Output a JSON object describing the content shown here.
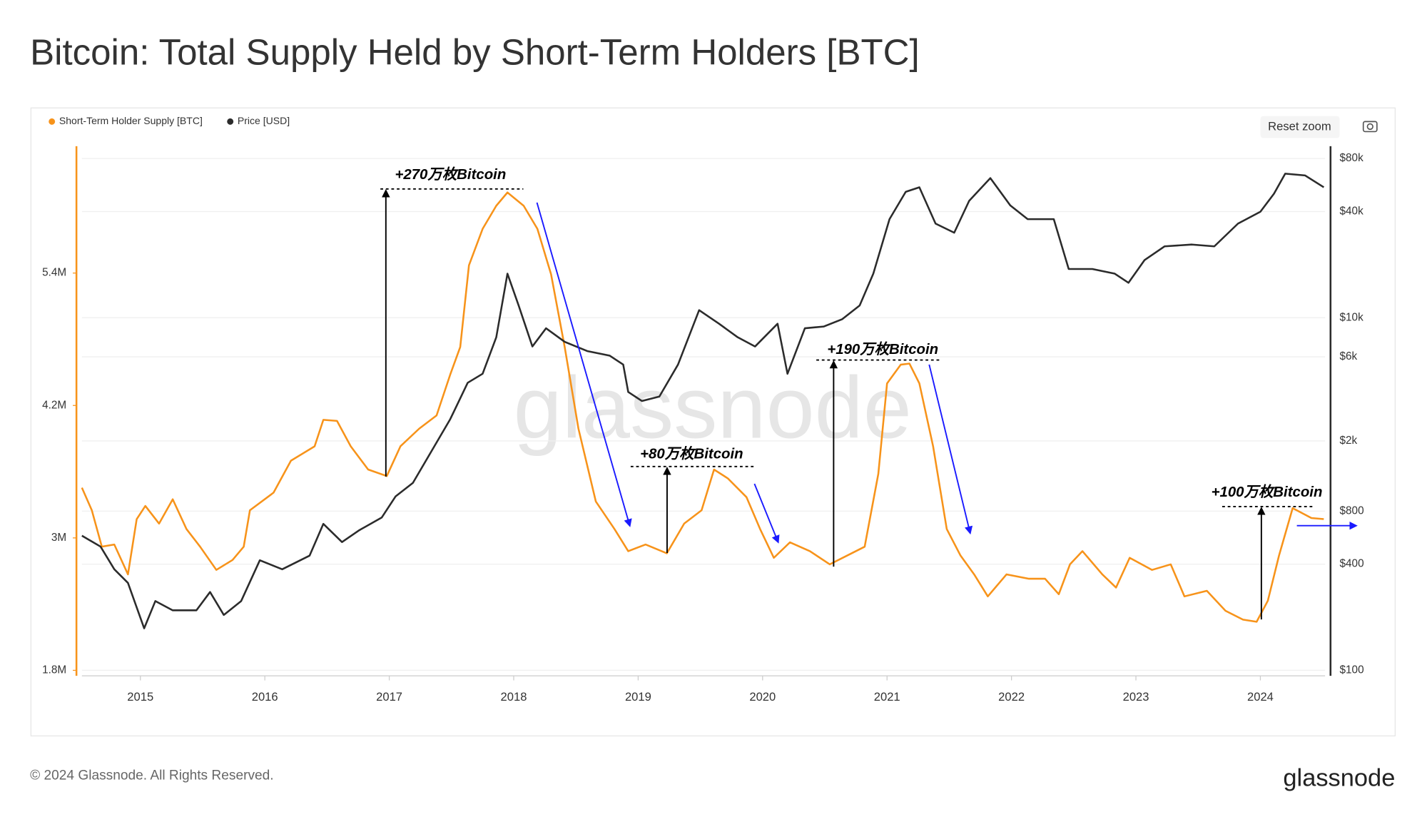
{
  "chart_data": {
    "type": "line",
    "title": "Bitcoin: Total Supply Held by Short-Term Holders [BTC]",
    "footer": "© 2024 Glassnode. All Rights Reserved.",
    "logo": "glassnode",
    "watermark": "glassnode",
    "reset_zoom": "Reset zoom",
    "xlim": [
      2014.53,
      2024.52
    ],
    "xticks": [
      2015,
      2016,
      2017,
      2018,
      2019,
      2020,
      2021,
      2022,
      2023,
      2024
    ],
    "ylim": [
      1750000,
      6550000
    ],
    "yticks": [
      {
        "value": 1800000,
        "label": "1.8M"
      },
      {
        "value": 3000000,
        "label": "3M"
      },
      {
        "value": 4200000,
        "label": "4.2M"
      },
      {
        "value": 5400000,
        "label": "5.4M"
      }
    ],
    "y2lim": [
      93,
      94000
    ],
    "y2log": true,
    "y2ticks": [
      {
        "value": 100,
        "label": "$100"
      },
      {
        "value": 400,
        "label": "$400"
      },
      {
        "value": 800,
        "label": "$800"
      },
      {
        "value": 2000,
        "label": "$2k"
      },
      {
        "value": 6000,
        "label": "$6k"
      },
      {
        "value": 10000,
        "label": "$10k"
      },
      {
        "value": 40000,
        "label": "$40k"
      },
      {
        "value": 80000,
        "label": "$80k"
      }
    ],
    "grid": "y2",
    "legend": "top-left",
    "series": [
      {
        "name": "Short-Term Holder Supply [BTC]",
        "color": "#f7931a",
        "axis": "y",
        "x": [
          2014.53,
          2014.61,
          2014.69,
          2014.79,
          2014.9,
          2014.97,
          2015.04,
          2015.15,
          2015.26,
          2015.37,
          2015.48,
          2015.61,
          2015.74,
          2015.83,
          2015.88,
          2016.07,
          2016.21,
          2016.4,
          2016.47,
          2016.58,
          2016.69,
          2016.83,
          2016.98,
          2017.09,
          2017.24,
          2017.38,
          2017.49,
          2017.57,
          2017.64,
          2017.75,
          2017.86,
          2017.95,
          2018.08,
          2018.19,
          2018.3,
          2018.41,
          2018.52,
          2018.66,
          2018.81,
          2018.92,
          2019.06,
          2019.23,
          2019.37,
          2019.51,
          2019.61,
          2019.72,
          2019.87,
          2019.98,
          2020.09,
          2020.22,
          2020.38,
          2020.54,
          2020.68,
          2020.82,
          2020.93,
          2021.0,
          2021.11,
          2021.18,
          2021.26,
          2021.37,
          2021.48,
          2021.59,
          2021.7,
          2021.81,
          2021.96,
          2022.14,
          2022.27,
          2022.38,
          2022.47,
          2022.57,
          2022.73,
          2022.84,
          2022.95,
          2023.13,
          2023.28,
          2023.39,
          2023.57,
          2023.72,
          2023.86,
          2023.97,
          2024.06,
          2024.15,
          2024.26,
          2024.41,
          2024.51
        ],
        "values": [
          3455000,
          3250000,
          2920000,
          2940000,
          2670000,
          3170000,
          3290000,
          3130000,
          3350000,
          3080000,
          2920000,
          2710000,
          2800000,
          2920000,
          3250000,
          3410000,
          3700000,
          3830000,
          4070000,
          4060000,
          3830000,
          3620000,
          3560000,
          3830000,
          3990000,
          4110000,
          4480000,
          4730000,
          5470000,
          5800000,
          6010000,
          6130000,
          6010000,
          5800000,
          5390000,
          4730000,
          3990000,
          3330000,
          3080000,
          2880000,
          2940000,
          2860000,
          3130000,
          3250000,
          3620000,
          3540000,
          3370000,
          3080000,
          2820000,
          2960000,
          2880000,
          2760000,
          2840000,
          2920000,
          3580000,
          4400000,
          4570000,
          4580000,
          4400000,
          3830000,
          3080000,
          2840000,
          2670000,
          2470000,
          2670000,
          2630000,
          2630000,
          2490000,
          2760000,
          2880000,
          2670000,
          2550000,
          2820000,
          2710000,
          2760000,
          2470000,
          2520000,
          2340000,
          2260000,
          2240000,
          2430000,
          2840000,
          3270000,
          3180000,
          3170000
        ]
      },
      {
        "name": "Price [USD]",
        "color": "#2b2b2b",
        "axis": "y2",
        "x": [
          2014.53,
          2014.68,
          2014.79,
          2014.9,
          2015.03,
          2015.12,
          2015.26,
          2015.45,
          2015.56,
          2015.67,
          2015.81,
          2015.96,
          2016.14,
          2016.36,
          2016.47,
          2016.62,
          2016.76,
          2016.94,
          2017.05,
          2017.19,
          2017.34,
          2017.49,
          2017.63,
          2017.75,
          2017.86,
          2017.95,
          2018.04,
          2018.15,
          2018.26,
          2018.41,
          2018.59,
          2018.77,
          2018.88,
          2018.92,
          2019.03,
          2019.17,
          2019.32,
          2019.49,
          2019.65,
          2019.8,
          2019.94,
          2020.12,
          2020.2,
          2020.34,
          2020.49,
          2020.64,
          2020.78,
          2020.89,
          2021.02,
          2021.15,
          2021.26,
          2021.39,
          2021.54,
          2021.66,
          2021.83,
          2021.99,
          2022.13,
          2022.34,
          2022.46,
          2022.65,
          2022.83,
          2022.94,
          2023.07,
          2023.23,
          2023.45,
          2023.63,
          2023.82,
          2024.0,
          2024.11,
          2024.2,
          2024.36,
          2024.51
        ],
        "values": [
          580,
          503,
          374,
          313,
          173,
          247,
          219,
          219,
          278,
          206,
          247,
          421,
          374,
          447,
          677,
          534,
          624,
          736,
          968,
          1156,
          1753,
          2656,
          4276,
          4810,
          7740,
          17780,
          11720,
          6870,
          8710,
          7300,
          6470,
          6100,
          5420,
          3790,
          3370,
          3570,
          5420,
          11040,
          9250,
          7740,
          6870,
          9250,
          4810,
          8710,
          8910,
          9810,
          11720,
          17780,
          36240,
          51760,
          54950,
          34200,
          30340,
          46030,
          61940,
          43350,
          36240,
          36240,
          18880,
          18880,
          17780,
          15780,
          21240,
          25400,
          26000,
          25400,
          34200,
          39900,
          50560,
          65620,
          64100,
          54950
        ]
      }
    ],
    "annotations": [
      "+270万枚Bitcoin",
      "+80万枚Bitcoin",
      "+190万枚Bitcoin",
      "+100万枚Bitcoin"
    ]
  }
}
